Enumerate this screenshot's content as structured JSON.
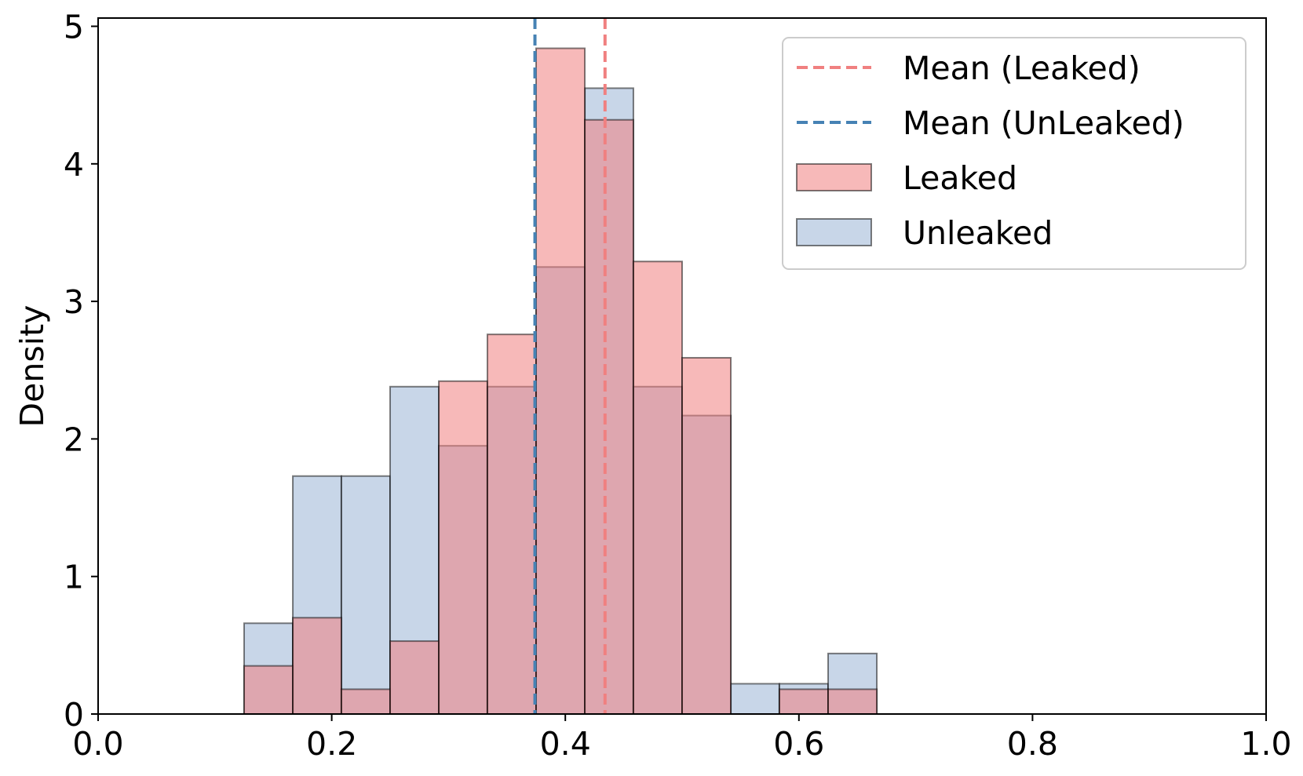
{
  "chart_data": {
    "type": "histogram",
    "xlabel": "",
    "ylabel": "Density",
    "xlim": [
      0.0,
      1.0
    ],
    "ylim": [
      0,
      5.06
    ],
    "x_ticks": [
      "0.0",
      "0.2",
      "0.4",
      "0.6",
      "0.8",
      "1.0"
    ],
    "y_ticks": [
      "0",
      "1",
      "2",
      "3",
      "4",
      "5"
    ],
    "bin_edges": [
      0.125,
      0.1667,
      0.2083,
      0.25,
      0.2917,
      0.3333,
      0.375,
      0.4167,
      0.4583,
      0.5,
      0.5417,
      0.5833,
      0.625,
      0.6667
    ],
    "series": [
      {
        "name": "Leaked",
        "color": "#f08080",
        "values": [
          0.35,
          0.7,
          0.18,
          0.53,
          2.42,
          2.76,
          4.84,
          4.32,
          3.29,
          2.59,
          0.0,
          0.18,
          0.18
        ]
      },
      {
        "name": "Unleaked",
        "color": "#b0c4de",
        "values": [
          0.66,
          1.73,
          1.73,
          2.38,
          1.95,
          2.38,
          3.25,
          4.55,
          2.38,
          2.17,
          0.22,
          0.22,
          0.44
        ]
      }
    ],
    "mean_lines": [
      {
        "name": "Mean (Leaked)",
        "x": 0.434,
        "color": "#f08080"
      },
      {
        "name": "Mean (UnLeaked)",
        "x": 0.374,
        "color": "#4682b4"
      }
    ],
    "legend": {
      "position": "top-right",
      "entries": [
        {
          "label": "Mean (Leaked)",
          "kind": "line",
          "color": "#f08080"
        },
        {
          "label": "Mean (UnLeaked)",
          "kind": "line",
          "color": "#4682b4"
        },
        {
          "label": "Leaked",
          "kind": "patch",
          "color": "#f08080"
        },
        {
          "label": "Unleaked",
          "kind": "patch",
          "color": "#b0c4de"
        }
      ]
    },
    "grid": false
  }
}
